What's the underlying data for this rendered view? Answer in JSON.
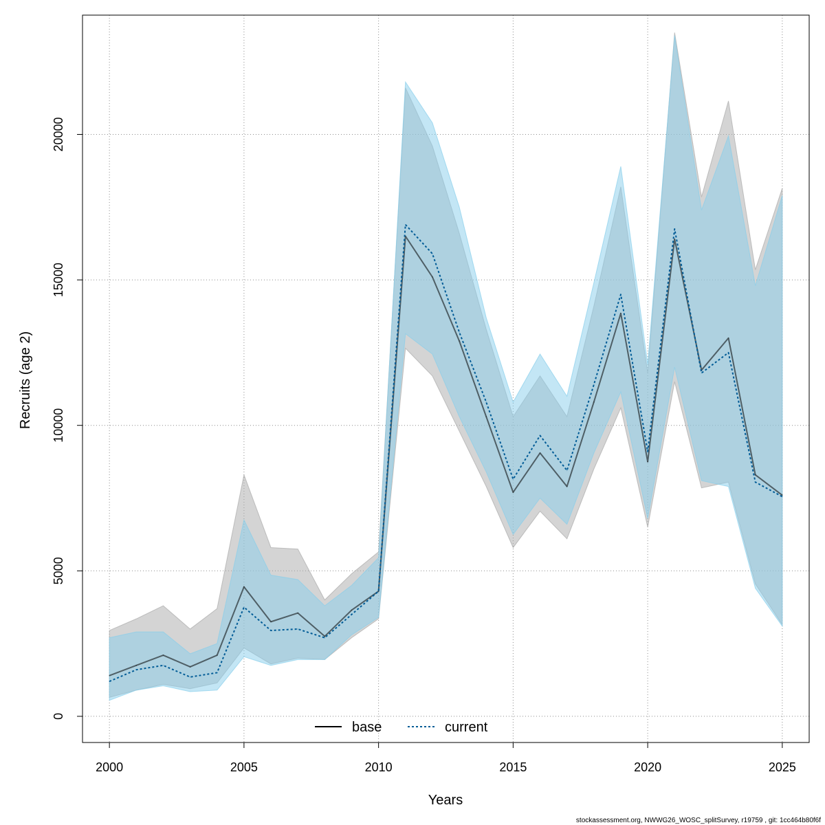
{
  "chart_data": {
    "type": "line",
    "xlabel": "Years",
    "ylabel": "Recruits (age 2)",
    "xlim": [
      1999,
      2026
    ],
    "ylim": [
      -900,
      24100
    ],
    "x_ticks": [
      2000,
      2005,
      2010,
      2015,
      2020,
      2025
    ],
    "y_ticks": [
      0,
      5000,
      10000,
      15000,
      20000
    ],
    "grid": true,
    "legend_position": "bottom-center",
    "x": [
      2000,
      2001,
      2002,
      2003,
      2004,
      2005,
      2006,
      2007,
      2008,
      2009,
      2010,
      2011,
      2012,
      2013,
      2014,
      2015,
      2016,
      2017,
      2018,
      2019,
      2020,
      2021,
      2022,
      2023,
      2024,
      2025
    ],
    "series": [
      {
        "name": "base",
        "color": "#000000",
        "band_color": "#a9a9a9",
        "line_style": "solid",
        "values": [
          1400,
          1750,
          2100,
          1700,
          2100,
          4450,
          3250,
          3550,
          2750,
          3650,
          4300,
          16500,
          15100,
          12900,
          10300,
          7700,
          9050,
          7900,
          10800,
          13850,
          8750,
          16400,
          11900,
          13000,
          8300,
          7600
        ],
        "lower": [
          650,
          900,
          1100,
          950,
          1150,
          2350,
          1800,
          2000,
          1950,
          2700,
          3350,
          12650,
          11700,
          9800,
          7900,
          5800,
          7050,
          6100,
          8500,
          10600,
          6500,
          11500,
          7850,
          8050,
          4550,
          3150
        ],
        "upper": [
          2950,
          3350,
          3800,
          3000,
          3700,
          8300,
          5800,
          5750,
          4000,
          4900,
          5650,
          21600,
          19600,
          16600,
          13300,
          10300,
          11700,
          10300,
          14100,
          18200,
          11800,
          23500,
          17850,
          21150,
          15350,
          18150
        ]
      },
      {
        "name": "current",
        "color": "#005b96",
        "band_color": "#87ceeb",
        "line_style": "dotted",
        "values": [
          1200,
          1600,
          1750,
          1350,
          1500,
          3750,
          2950,
          3000,
          2700,
          3500,
          4300,
          16900,
          15900,
          13200,
          10800,
          8150,
          9650,
          8450,
          11400,
          14500,
          9100,
          16750,
          11800,
          12500,
          8050,
          7550
        ],
        "lower": [
          550,
          900,
          1050,
          850,
          900,
          2050,
          1750,
          1950,
          1950,
          2800,
          3400,
          13150,
          12450,
          10300,
          8400,
          6250,
          7500,
          6600,
          9050,
          11150,
          6800,
          12000,
          8100,
          7900,
          4400,
          3100
        ],
        "upper": [
          2700,
          2900,
          2900,
          2150,
          2500,
          6750,
          4850,
          4700,
          3800,
          4500,
          5450,
          21800,
          20400,
          17500,
          13700,
          10800,
          12450,
          11000,
          14900,
          18900,
          12100,
          23400,
          17400,
          19950,
          14800,
          17900
        ]
      }
    ],
    "footer": "stockassessment.org, NWWG26_WOSC_splitSurvey, r19759 , git: 1cc464b80f6f"
  }
}
